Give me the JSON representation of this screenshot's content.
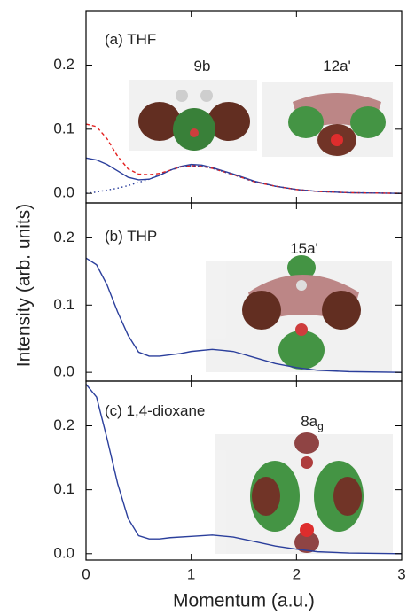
{
  "chart_data": [
    {
      "type": "line",
      "annotations": [
        {
          "text": "(a) THF"
        },
        {
          "text": "9b"
        },
        {
          "text": "12a'"
        }
      ],
      "x": [
        0,
        0.1,
        0.2,
        0.3,
        0.4,
        0.5,
        0.6,
        0.7,
        0.8,
        0.9,
        1.0,
        1.1,
        1.2,
        1.4,
        1.6,
        1.8,
        2.0,
        2.2,
        2.5,
        3.0
      ],
      "series": [
        {
          "color": "#2b3f9c",
          "style": "solid",
          "values": [
            0.055,
            0.052,
            0.045,
            0.035,
            0.025,
            0.021,
            0.022,
            0.028,
            0.036,
            0.042,
            0.045,
            0.044,
            0.04,
            0.03,
            0.019,
            0.011,
            0.006,
            0.003,
            0.001,
            0
          ]
        },
        {
          "color": "#e3201f",
          "style": "dashed",
          "values": [
            0.108,
            0.104,
            0.085,
            0.058,
            0.038,
            0.03,
            0.029,
            0.031,
            0.036,
            0.041,
            0.043,
            0.042,
            0.039,
            0.029,
            0.018,
            0.011,
            0.006,
            0.003,
            0.001,
            0
          ]
        },
        {
          "color": "#2b3f9c",
          "style": "dotted",
          "values": [
            0.0,
            0.002,
            0.005,
            0.008,
            0.012,
            0.017,
            0.022,
            0.029,
            0.036,
            0.041,
            0.043,
            0.042,
            0.039,
            0.029,
            0.018,
            0.011,
            0.006,
            0.003,
            0.001,
            0
          ]
        }
      ],
      "xlim": [
        0,
        3
      ],
      "xticks": [
        0,
        1,
        2,
        3
      ],
      "ylim": [
        -0.015,
        0.285
      ],
      "yticks": [
        {
          "value": 0,
          "label": "0.0"
        },
        0.1,
        0.2
      ]
    },
    {
      "type": "line",
      "ylabel": "Intensity (arb. units)",
      "annotations": [
        {
          "text": "(b) THP"
        },
        {
          "text": "15a'"
        }
      ],
      "x": [
        0,
        0.1,
        0.2,
        0.3,
        0.4,
        0.5,
        0.6,
        0.7,
        0.8,
        0.9,
        1.0,
        1.2,
        1.4,
        1.6,
        1.8,
        2.0,
        2.2,
        2.5,
        3.0
      ],
      "series": [
        {
          "color": "#2b3f9c",
          "style": "solid",
          "values": [
            0.17,
            0.16,
            0.13,
            0.09,
            0.055,
            0.03,
            0.024,
            0.024,
            0.026,
            0.028,
            0.031,
            0.034,
            0.031,
            0.022,
            0.013,
            0.007,
            0.003,
            0.001,
            0
          ]
        }
      ],
      "xlim": [
        0,
        3
      ],
      "xticks": [
        0,
        1,
        2,
        3
      ],
      "ylim": [
        -0.013,
        0.252
      ],
      "yticks": [
        {
          "value": 0,
          "label": "0.0"
        },
        0.1,
        0.2
      ]
    },
    {
      "type": "line",
      "xlabel": "Momentum (a.u.)",
      "annotations": [
        {
          "text": "(c) 1,4-dioxane"
        },
        {
          "text": "8a",
          "sub": "g"
        }
      ],
      "x": [
        0,
        0.1,
        0.2,
        0.3,
        0.4,
        0.5,
        0.6,
        0.7,
        0.8,
        1.0,
        1.2,
        1.4,
        1.6,
        1.8,
        2.0,
        2.2,
        2.5,
        3.0
      ],
      "series": [
        {
          "color": "#2b3f9c",
          "style": "solid",
          "values": [
            0.265,
            0.245,
            0.18,
            0.11,
            0.055,
            0.028,
            0.023,
            0.023,
            0.025,
            0.027,
            0.029,
            0.026,
            0.019,
            0.012,
            0.007,
            0.003,
            0.001,
            0
          ]
        }
      ],
      "xlim": [
        0,
        3
      ],
      "xticks": [
        0,
        1,
        2,
        3
      ],
      "ylim": [
        -0.01,
        0.27
      ],
      "yticks": [
        {
          "value": 0,
          "label": "0.0"
        },
        0.1,
        0.2
      ]
    }
  ]
}
